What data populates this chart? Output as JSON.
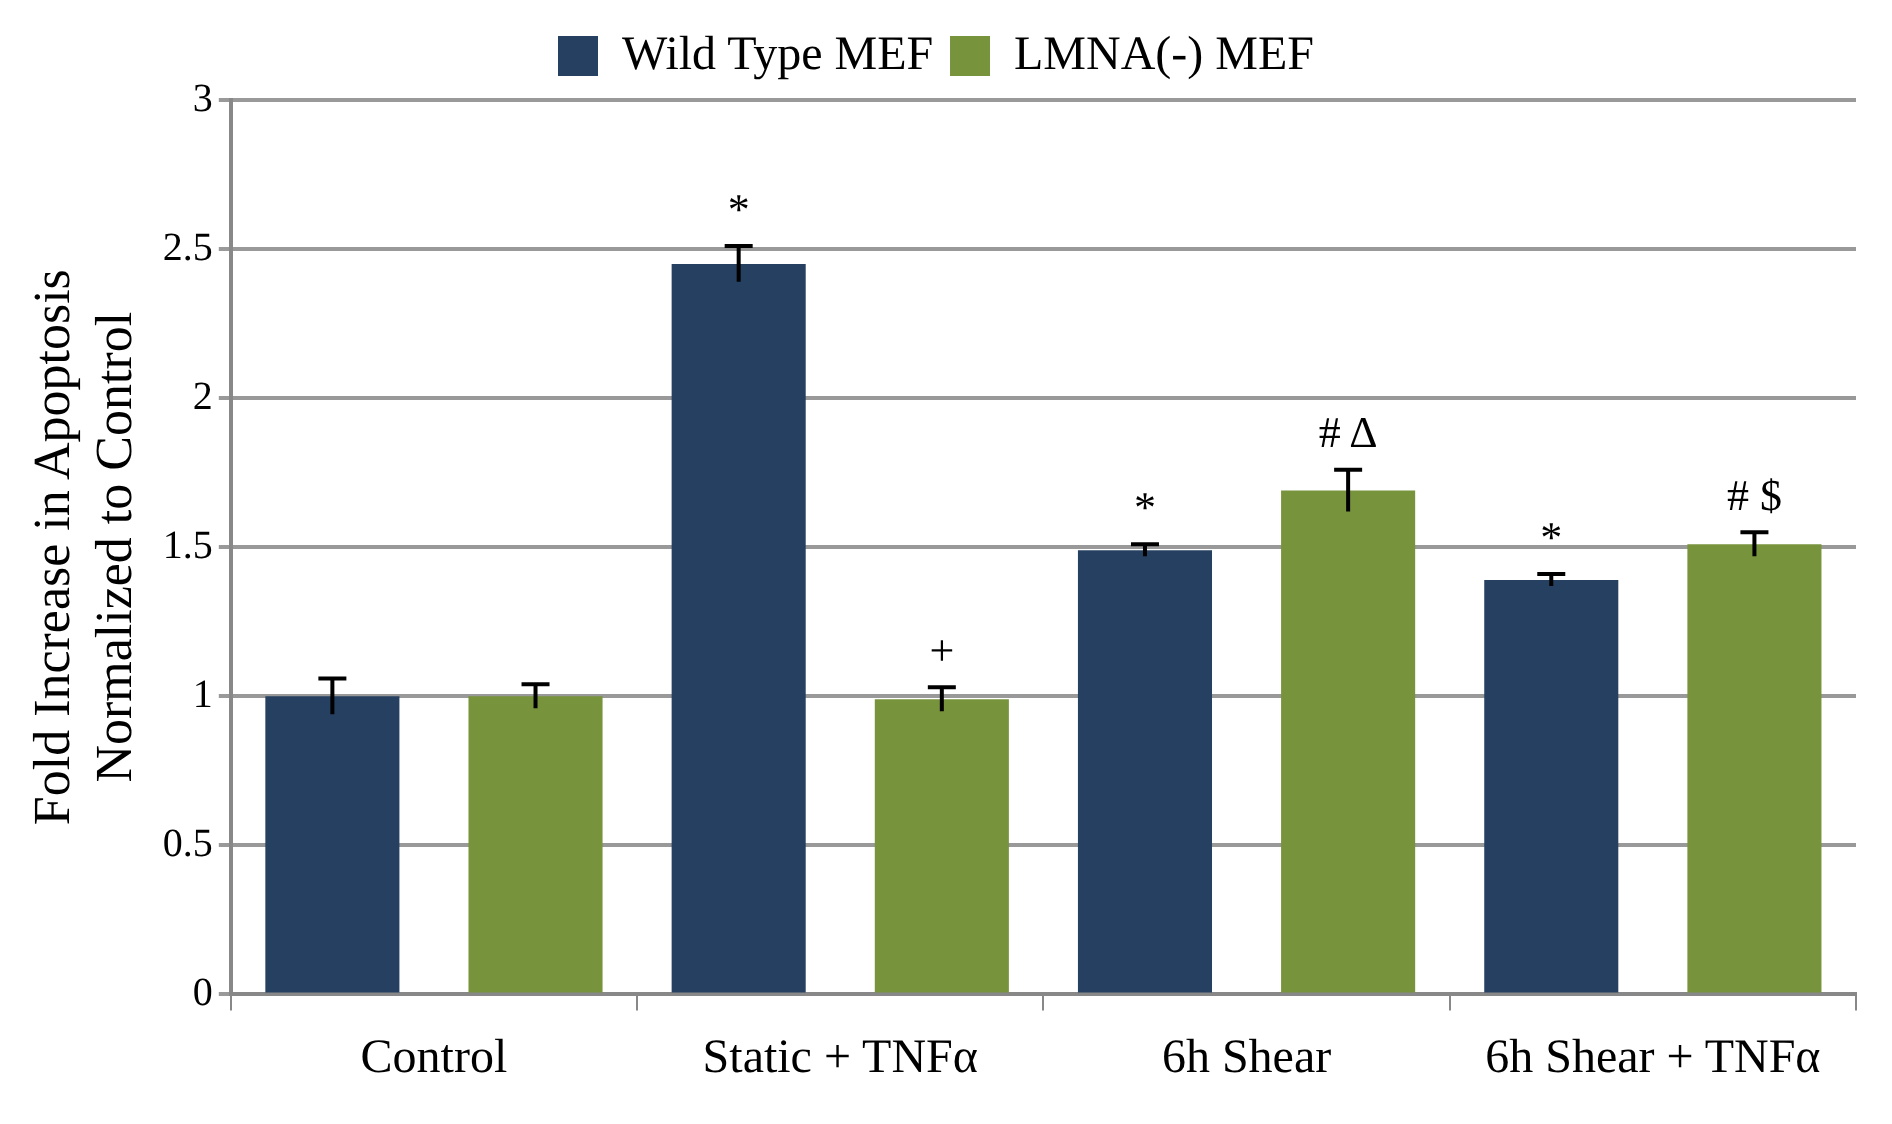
{
  "chart_data": {
    "type": "bar",
    "ylabel": "Fold Increase in Apoptosis\nNormalized to Control",
    "categories": [
      "Control",
      "Static + TNFα",
      "6h Shear",
      "6h Shear + TNFα"
    ],
    "series": [
      {
        "name": "Wild Type MEF",
        "color": "#264061",
        "values": [
          1.0,
          2.45,
          1.49,
          1.39
        ],
        "errors": [
          0.06,
          0.06,
          0.02,
          0.02
        ],
        "value_labels": [
          null,
          "*",
          "*",
          "*"
        ]
      },
      {
        "name": "LMNA(-) MEF",
        "color": "#77933c",
        "values": [
          1.0,
          0.99,
          1.69,
          1.51
        ],
        "errors": [
          0.04,
          0.04,
          0.07,
          0.04
        ],
        "value_labels": [
          null,
          "+",
          "# Δ",
          "# $"
        ]
      }
    ],
    "ylim": [
      0,
      3
    ],
    "yticks": [
      0,
      0.5,
      1,
      1.5,
      2,
      2.5,
      3
    ],
    "grid": "y",
    "legend": "top"
  }
}
